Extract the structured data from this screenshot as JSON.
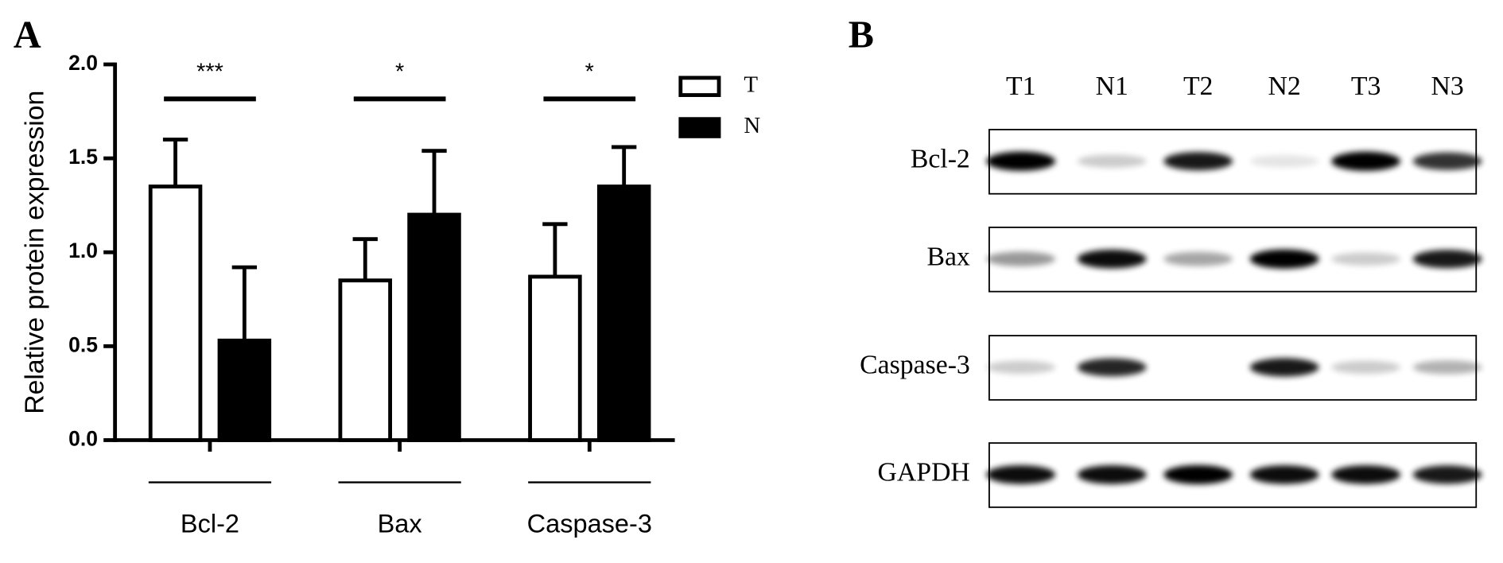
{
  "panels": {
    "a": "A",
    "b": "B"
  },
  "chart_data": {
    "type": "bar",
    "ylabel": "Relative protein expression",
    "categories": [
      "Bcl-2",
      "Bax",
      "Caspase-3"
    ],
    "series": [
      {
        "name": "T",
        "color": "#ffffff",
        "values": [
          1.35,
          0.85,
          0.87
        ],
        "errors": [
          0.25,
          0.22,
          0.28
        ]
      },
      {
        "name": "N",
        "color": "#000000",
        "values": [
          0.53,
          1.2,
          1.35
        ],
        "errors": [
          0.39,
          0.34,
          0.21
        ]
      }
    ],
    "ylim": [
      0,
      2
    ],
    "yticks": [
      {
        "value": 0,
        "label": "0.0"
      },
      {
        "value": 0.5,
        "label": "0.5"
      },
      {
        "value": 1,
        "label": "1.0"
      },
      {
        "value": 1.5,
        "label": "1.5"
      },
      {
        "value": 2,
        "label": "2.0"
      }
    ],
    "annotations": [
      "***",
      "*",
      "*"
    ],
    "legend": "upper right"
  },
  "blot": {
    "lanes": [
      "T1",
      "N1",
      "T2",
      "N2",
      "T3",
      "N3"
    ],
    "rows": [
      "Bcl-2",
      "Bax",
      "Caspase-3",
      "GAPDH"
    ]
  }
}
